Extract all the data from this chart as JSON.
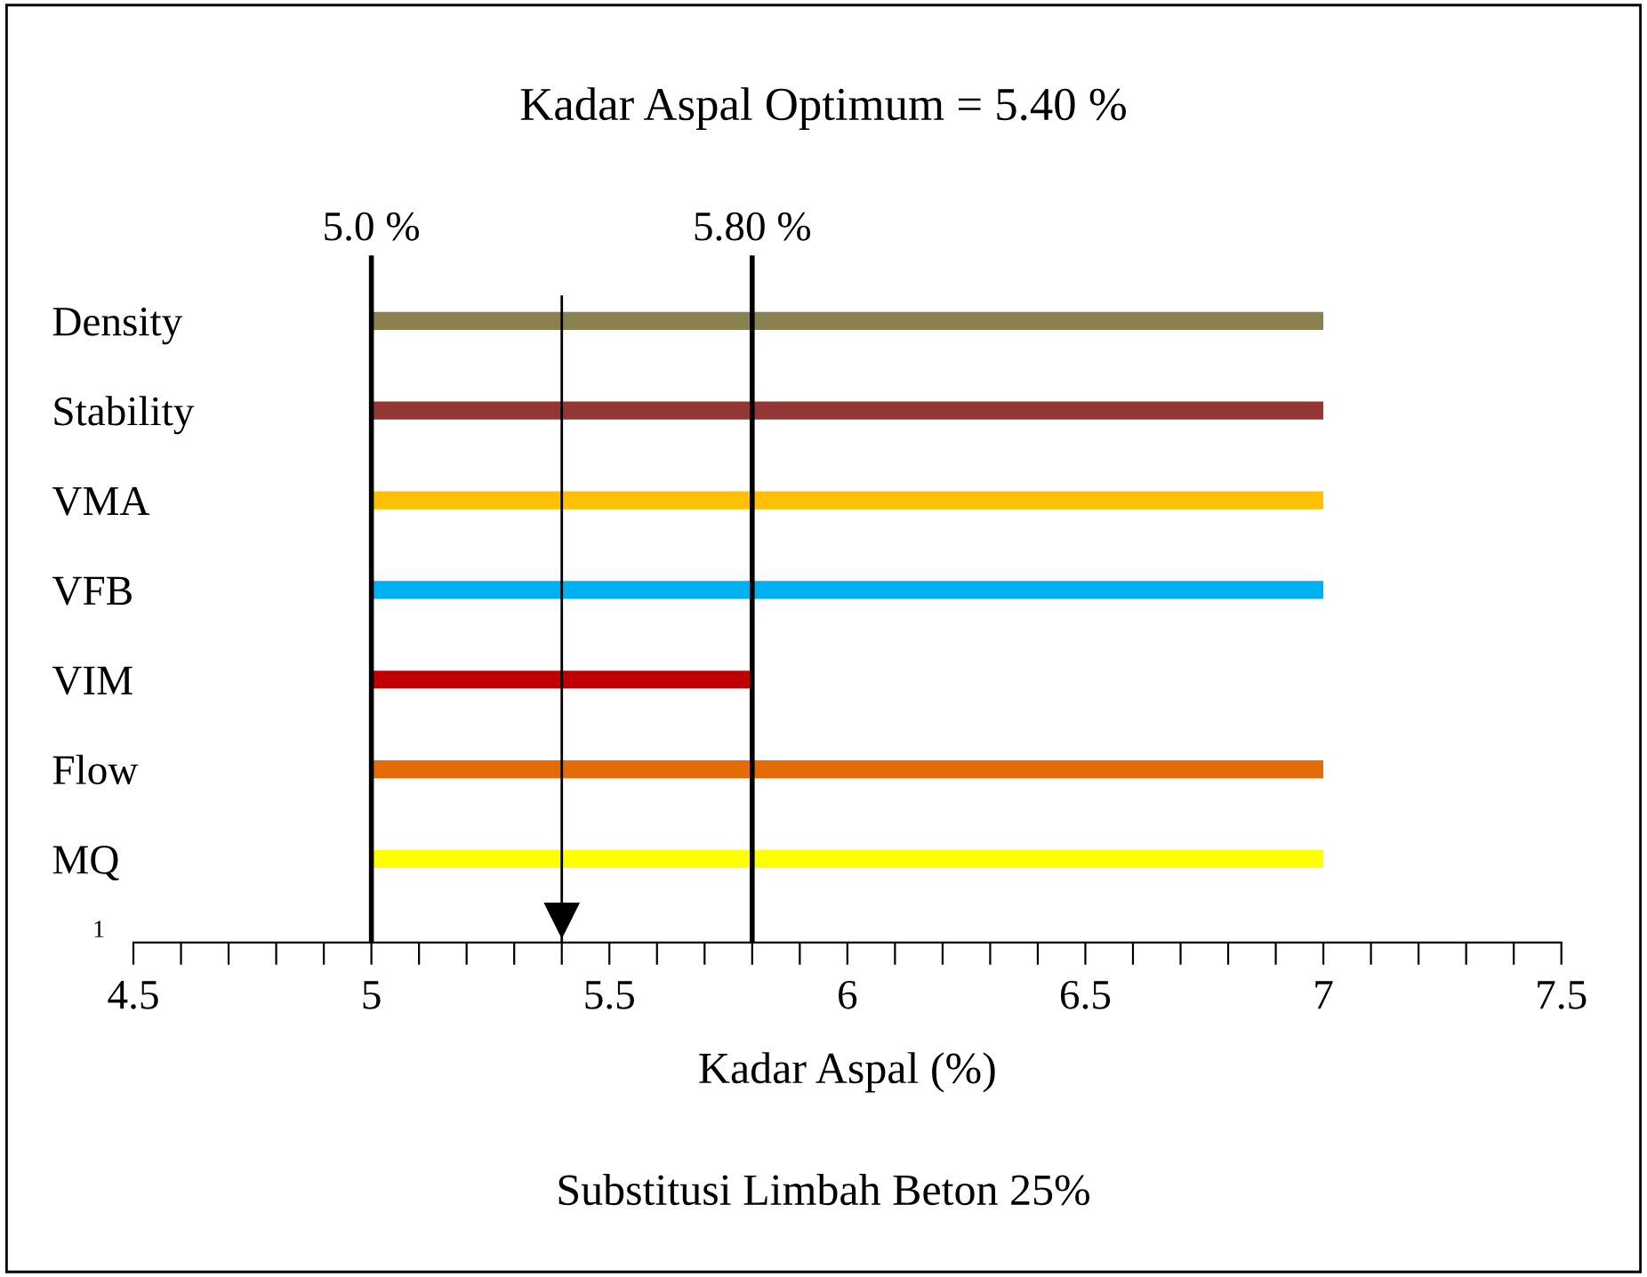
{
  "chart_data": {
    "type": "bar",
    "orientation": "horizontal",
    "title": "Kadar Aspal Optimum = 5.40 %",
    "xlabel": "Kadar Aspal (%)",
    "categories": [
      "Density",
      "Stability",
      "VMA",
      "VFB",
      "VIM",
      "Flow",
      "MQ"
    ],
    "base": [
      5,
      5,
      5,
      5,
      5,
      5,
      5
    ],
    "values": [
      2,
      2,
      2,
      2,
      0.8,
      2,
      2
    ],
    "colors": [
      "#8b8050",
      "#943634",
      "#ffc000",
      "#00b0f0",
      "#c00000",
      "#e36c09",
      "#ffff00"
    ],
    "xlim": [
      4.5,
      7.5
    ],
    "xticks": [
      4.5,
      {
        "value": 4.6,
        "label": null
      },
      {
        "value": 4.7,
        "label": null
      },
      {
        "value": 4.8,
        "label": null
      },
      {
        "value": 4.9,
        "label": null
      },
      5,
      {
        "value": 5.1,
        "label": null
      },
      {
        "value": 5.2,
        "label": null
      },
      {
        "value": 5.3,
        "label": null
      },
      {
        "value": 5.4,
        "label": null
      },
      5.5,
      {
        "value": 5.6,
        "label": null
      },
      {
        "value": 5.7,
        "label": null
      },
      {
        "value": 5.8,
        "label": null
      },
      {
        "value": 5.9,
        "label": null
      },
      6,
      {
        "value": 6.1,
        "label": null
      },
      {
        "value": 6.2,
        "label": null
      },
      {
        "value": 6.3,
        "label": null
      },
      {
        "value": 6.4,
        "label": null
      },
      6.5,
      {
        "value": 6.6,
        "label": null
      },
      {
        "value": 6.7,
        "label": null
      },
      {
        "value": 6.8,
        "label": null
      },
      {
        "value": 6.9,
        "label": null
      },
      7,
      {
        "value": 7.1,
        "label": null
      },
      {
        "value": 7.2,
        "label": null
      },
      {
        "value": 7.3,
        "label": null
      },
      {
        "value": 7.4,
        "label": null
      },
      7.5
    ],
    "ref_lines": [
      {
        "axis": "x",
        "value": 5.0,
        "label": "5.0 %",
        "color": "#000000"
      },
      {
        "axis": "x",
        "value": 5.8,
        "label": "5.80 %",
        "color": "#000000"
      },
      {
        "axis": "x",
        "value": 5.4,
        "label": null,
        "color": "#000000"
      }
    ],
    "annotations": [
      "1",
      "Substitusi Limbah Beton 25%"
    ],
    "grid": false,
    "legend": false
  }
}
